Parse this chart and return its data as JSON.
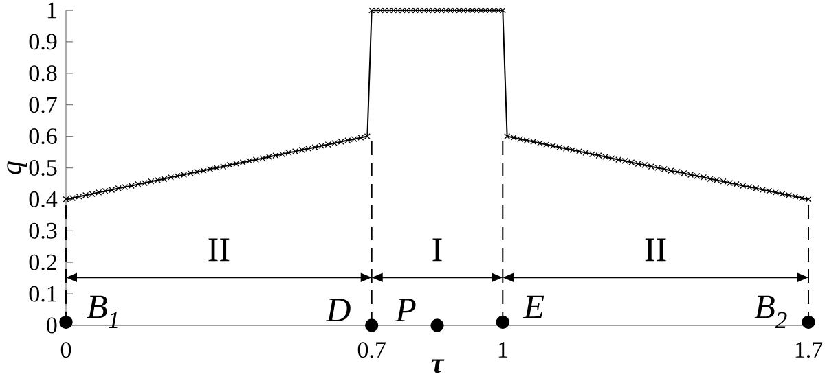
{
  "chart_data": {
    "type": "line",
    "xlabel": "τ",
    "ylabel": "q",
    "xlim": [
      0,
      1.7
    ],
    "ylim": [
      0,
      1
    ],
    "xticks": [
      0,
      0.7,
      1,
      1.7
    ],
    "yticks": [
      0,
      0.1,
      0.2,
      0.3,
      0.4,
      0.5,
      0.6,
      0.7,
      0.8,
      0.9,
      1
    ],
    "series": [
      {
        "color": "#000000",
        "marker": "cross",
        "x": [
          0,
          0.015,
          0.03,
          0.045,
          0.06,
          0.075,
          0.09,
          0.105,
          0.12,
          0.135,
          0.15,
          0.165,
          0.18,
          0.195,
          0.21,
          0.225,
          0.24,
          0.255,
          0.27,
          0.285,
          0.3,
          0.315,
          0.33,
          0.345,
          0.36,
          0.375,
          0.39,
          0.405,
          0.42,
          0.435,
          0.45,
          0.465,
          0.48,
          0.495,
          0.51,
          0.525,
          0.54,
          0.555,
          0.57,
          0.585,
          0.6,
          0.615,
          0.63,
          0.645,
          0.66,
          0.675,
          0.69,
          0.7,
          0.71,
          0.72,
          0.73,
          0.74,
          0.75,
          0.76,
          0.77,
          0.78,
          0.79,
          0.8,
          0.81,
          0.82,
          0.83,
          0.84,
          0.85,
          0.86,
          0.87,
          0.88,
          0.89,
          0.9,
          0.91,
          0.92,
          0.93,
          0.94,
          0.95,
          0.96,
          0.97,
          0.98,
          0.99,
          1,
          1.01,
          1.025,
          1.04,
          1.055,
          1.07,
          1.085,
          1.1,
          1.115,
          1.13,
          1.145,
          1.16,
          1.175,
          1.19,
          1.205,
          1.22,
          1.235,
          1.25,
          1.265,
          1.28,
          1.295,
          1.31,
          1.325,
          1.34,
          1.355,
          1.37,
          1.385,
          1.4,
          1.415,
          1.43,
          1.445,
          1.46,
          1.475,
          1.49,
          1.505,
          1.52,
          1.535,
          1.55,
          1.565,
          1.58,
          1.595,
          1.61,
          1.625,
          1.64,
          1.655,
          1.67,
          1.685,
          1.7
        ],
        "values": [
          0.4,
          0.404,
          0.409,
          0.413,
          0.417,
          0.422,
          0.426,
          0.43,
          0.435,
          0.439,
          0.443,
          0.448,
          0.452,
          0.457,
          0.461,
          0.465,
          0.47,
          0.474,
          0.478,
          0.483,
          0.487,
          0.491,
          0.496,
          0.5,
          0.504,
          0.509,
          0.513,
          0.517,
          0.522,
          0.526,
          0.53,
          0.535,
          0.539,
          0.543,
          0.548,
          0.552,
          0.557,
          0.561,
          0.565,
          0.57,
          0.574,
          0.578,
          0.583,
          0.587,
          0.591,
          0.596,
          0.6,
          1,
          1,
          1,
          1,
          1,
          1,
          1,
          1,
          1,
          1,
          1,
          1,
          1,
          1,
          1,
          1,
          1,
          1,
          1,
          1,
          1,
          1,
          1,
          1,
          1,
          1,
          1,
          1,
          1,
          1,
          1,
          0.6,
          0.596,
          0.591,
          0.587,
          0.583,
          0.578,
          0.574,
          0.57,
          0.565,
          0.561,
          0.557,
          0.552,
          0.548,
          0.543,
          0.539,
          0.535,
          0.53,
          0.526,
          0.522,
          0.517,
          0.513,
          0.509,
          0.504,
          0.5,
          0.496,
          0.491,
          0.487,
          0.483,
          0.478,
          0.474,
          0.47,
          0.465,
          0.461,
          0.457,
          0.452,
          0.448,
          0.443,
          0.439,
          0.435,
          0.43,
          0.426,
          0.422,
          0.417,
          0.413,
          0.409,
          0.404,
          0.4
        ]
      },
      {
        "color": "#000000",
        "marker": "none",
        "line_style": "dashed",
        "x": [
          0,
          0
        ],
        "values": [
          0,
          0.4
        ]
      },
      {
        "color": "#000000",
        "marker": "none",
        "line_style": "dashed",
        "x": [
          0.7,
          0.7
        ],
        "values": [
          0,
          0.6
        ]
      },
      {
        "color": "#000000",
        "marker": "none",
        "line_style": "dashed",
        "x": [
          1,
          1
        ],
        "values": [
          0,
          0.6
        ]
      },
      {
        "color": "#000000",
        "marker": "none",
        "line_style": "dashed",
        "x": [
          1.7,
          1.7
        ],
        "values": [
          0,
          0.4
        ]
      },
      {
        "type": "scatter",
        "color": "#000000",
        "marker": "circle",
        "x": [
          0,
          0.7,
          0.85,
          1,
          1.7
        ],
        "values": [
          0.01,
          0,
          0,
          0.01,
          0.01
        ]
      }
    ],
    "annotations": [
      "II",
      "I",
      "II",
      {
        "text": "B$_{1}$",
        "x": 0,
        "y": 0.01
      },
      {
        "text": "D",
        "x": 0.7,
        "y": 0
      },
      {
        "text": "P",
        "x": 0.85,
        "y": 0
      },
      {
        "text": "E",
        "x": 1,
        "y": 0.01
      },
      {
        "text": "B$_{2}$",
        "x": 1.7,
        "y": 0.01
      }
    ]
  }
}
